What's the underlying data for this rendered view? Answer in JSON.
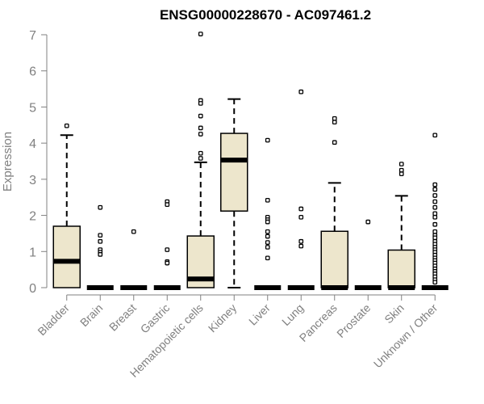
{
  "chart_data": {
    "type": "box",
    "title": "ENSG00000228670 - AC097461.2",
    "ylabel": "Expression",
    "xlabel": "",
    "ylim": [
      0,
      7
    ],
    "yticks": [
      0,
      1,
      2,
      3,
      4,
      5,
      6,
      7
    ],
    "grid": false,
    "categories": [
      "Bladder",
      "Brain",
      "Breast",
      "Gastric",
      "Hematopoietic cells",
      "Kidney",
      "Liver",
      "Lung",
      "Pancreas",
      "Prostate",
      "Skin",
      "Unknown / Other"
    ],
    "boxes": [
      {
        "min": 0,
        "q1": 0,
        "median": 0.73,
        "q3": 1.7,
        "max": 4.22,
        "outliers": [
          4.48
        ]
      },
      {
        "min": 0,
        "q1": 0,
        "median": 0,
        "q3": 0,
        "max": 0,
        "outliers": [
          2.22,
          1.45,
          1.28,
          1.05,
          0.98,
          0.92
        ]
      },
      {
        "min": 0,
        "q1": 0,
        "median": 0,
        "q3": 0,
        "max": 0,
        "outliers": [
          1.55
        ]
      },
      {
        "min": 0,
        "q1": 0,
        "median": 0,
        "q3": 0,
        "max": 0,
        "outliers": [
          2.38,
          2.3,
          1.05,
          0.72,
          0.68
        ]
      },
      {
        "min": 0,
        "q1": 0,
        "median": 0.24,
        "q3": 1.43,
        "max": 3.47,
        "outliers": [
          7.02,
          5.18,
          5.1,
          4.75,
          4.42,
          4.25,
          3.72,
          3.58
        ]
      },
      {
        "min": 0,
        "q1": 2.12,
        "median": 3.53,
        "q3": 4.27,
        "max": 5.22,
        "outliers": []
      },
      {
        "min": 0,
        "q1": 0,
        "median": 0,
        "q3": 0,
        "max": 0,
        "outliers": [
          4.08,
          2.42,
          1.95,
          1.88,
          1.82,
          1.55,
          1.42,
          1.25,
          1.12,
          0.82
        ]
      },
      {
        "min": 0,
        "q1": 0,
        "median": 0,
        "q3": 0,
        "max": 0,
        "outliers": [
          5.42,
          2.18,
          1.95,
          1.28,
          1.15
        ]
      },
      {
        "min": 0,
        "q1": 0,
        "median": 0,
        "q3": 1.56,
        "max": 2.9,
        "outliers": [
          4.68,
          4.58,
          4.02
        ]
      },
      {
        "min": 0,
        "q1": 0,
        "median": 0,
        "q3": 0,
        "max": 0,
        "outliers": [
          1.82
        ]
      },
      {
        "min": 0,
        "q1": 0,
        "median": 0,
        "q3": 1.04,
        "max": 2.54,
        "outliers": [
          3.42,
          3.25,
          3.15
        ]
      },
      {
        "min": 0,
        "q1": 0,
        "median": 0,
        "q3": 0,
        "max": 0,
        "outliers": [
          4.22,
          2.85,
          2.72,
          2.55,
          2.38,
          2.22,
          2.05,
          1.95,
          1.75,
          1.55,
          1.45,
          1.38,
          1.28,
          1.2,
          1.12,
          1.05,
          0.98,
          0.9,
          0.82,
          0.75,
          0.68,
          0.6,
          0.52,
          0.45,
          0.38,
          0.3,
          0.22,
          0.15
        ]
      }
    ],
    "colors": {
      "box_fill": "#ede6cc",
      "box_stroke": "#000000",
      "axis": "#808080",
      "tick_text": "#808080",
      "title": "#000000"
    }
  }
}
